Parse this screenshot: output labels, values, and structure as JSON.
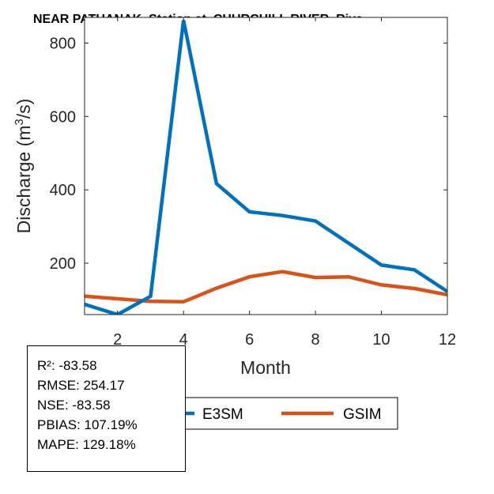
{
  "chart_data": {
    "type": "line",
    "title": "NEAR PATUANAK  Station at  CHURCHILL RIVER  Rive",
    "xlabel": "Month",
    "ylabel": "Discharge (m³/s)",
    "ylabel_parts": {
      "prefix": "Discharge (m",
      "sup": "3",
      "suffix": "/s)"
    },
    "xlim": [
      1,
      12
    ],
    "ylim": [
      60,
      870
    ],
    "xticks": [
      2,
      4,
      6,
      8,
      10,
      12
    ],
    "yticks": [
      200,
      400,
      600,
      800
    ],
    "x": [
      1,
      2,
      3,
      4,
      5,
      6,
      7,
      8,
      9,
      10,
      11,
      12
    ],
    "series": [
      {
        "name": "E3SM",
        "color": "#0072BD",
        "values": [
          88,
          60,
          110,
          862,
          417,
          340,
          330,
          315,
          255,
          195,
          182,
          123
        ]
      },
      {
        "name": "GSIM",
        "color": "#D95319",
        "values": [
          110,
          103,
          96,
          95,
          132,
          163,
          177,
          161,
          163,
          141,
          131,
          114
        ]
      }
    ],
    "legend": [
      "E3SM",
      "GSIM"
    ]
  },
  "stats": {
    "r2": "R²: -83.58",
    "rmse": "RMSE: 254.17",
    "nse": "NSE: -83.58",
    "pbias": "PBIAS: 107.19%",
    "mape": "MAPE: 129.18%"
  }
}
